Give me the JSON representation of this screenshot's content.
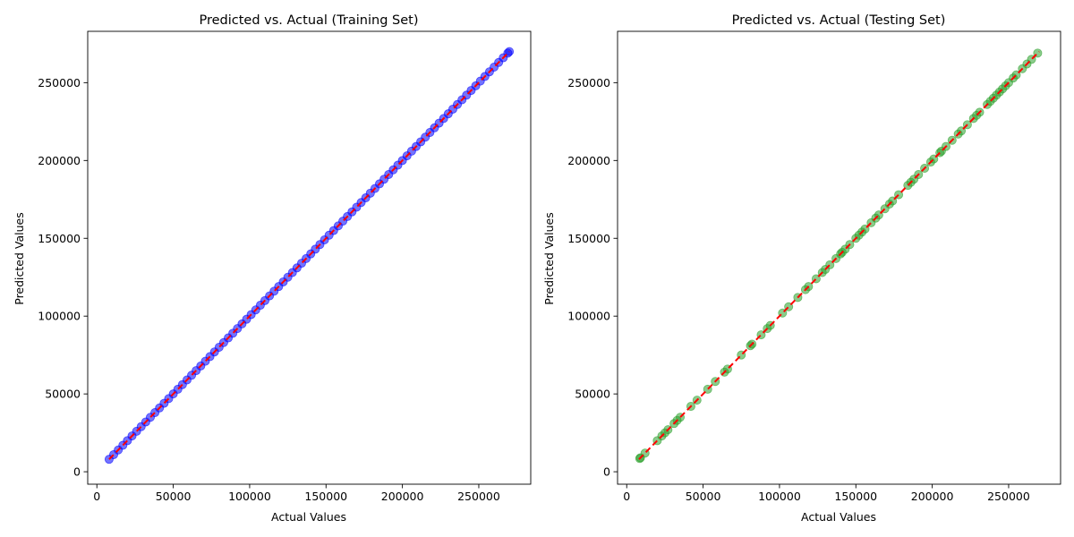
{
  "chart_data": [
    {
      "type": "scatter",
      "title": "Predicted vs. Actual (Training Set)",
      "xlabel": "Actual Values",
      "ylabel": "Predicted Values",
      "xlim": [
        -6000,
        284000
      ],
      "ylim": [
        -8000,
        283000
      ],
      "xticks": [
        0,
        50000,
        100000,
        150000,
        200000,
        250000
      ],
      "yticks": [
        0,
        50000,
        100000,
        150000,
        200000,
        250000
      ],
      "grid": false,
      "point_color": "#0000ff",
      "reference_line": {
        "style": "dashed",
        "color": "#ff0000",
        "from": [
          8000,
          8000
        ],
        "to": [
          270000,
          270000
        ]
      },
      "x": [
        8000,
        11000,
        14000,
        17000,
        20000,
        23000,
        26000,
        29000,
        32000,
        35000,
        38000,
        41000,
        44000,
        47000,
        50000,
        53000,
        56000,
        59000,
        62000,
        65000,
        68000,
        71000,
        74000,
        77000,
        80000,
        83000,
        86000,
        89000,
        92000,
        95000,
        98000,
        101000,
        104000,
        107000,
        110000,
        113000,
        116000,
        119000,
        122000,
        125000,
        128000,
        131000,
        134000,
        137000,
        140000,
        143000,
        146000,
        149000,
        152000,
        155000,
        158000,
        161000,
        164000,
        167000,
        170000,
        173000,
        176000,
        179000,
        182000,
        185000,
        188000,
        191000,
        194000,
        197000,
        200000,
        203000,
        206000,
        209000,
        212000,
        215000,
        218000,
        221000,
        224000,
        227000,
        230000,
        233000,
        236000,
        239000,
        242000,
        245000,
        248000,
        251000,
        254000,
        257000,
        260000,
        263000,
        266000,
        269000,
        270000
      ],
      "y": [
        8000,
        11000,
        14000,
        17000,
        20000,
        23000,
        26000,
        29000,
        32000,
        35000,
        38000,
        41000,
        44000,
        47000,
        50000,
        53000,
        56000,
        59000,
        62000,
        65000,
        68000,
        71000,
        74000,
        77000,
        80000,
        83000,
        86000,
        89000,
        92000,
        95000,
        98000,
        101000,
        104000,
        107000,
        110000,
        113000,
        116000,
        119000,
        122000,
        125000,
        128000,
        131000,
        134000,
        137000,
        140000,
        143000,
        146000,
        149000,
        152000,
        155000,
        158000,
        161000,
        164000,
        167000,
        170000,
        173000,
        176000,
        179000,
        182000,
        185000,
        188000,
        191000,
        194000,
        197000,
        200000,
        203000,
        206000,
        209000,
        212000,
        215000,
        218000,
        221000,
        224000,
        227000,
        230000,
        233000,
        236000,
        239000,
        242000,
        245000,
        248000,
        251000,
        254000,
        257000,
        260000,
        263000,
        266000,
        269000,
        270000
      ]
    },
    {
      "type": "scatter",
      "title": "Predicted vs. Actual (Testing Set)",
      "xlabel": "Actual Values",
      "ylabel": "Predicted Values",
      "xlim": [
        -6000,
        284000
      ],
      "ylim": [
        -8000,
        283000
      ],
      "xticks": [
        0,
        50000,
        100000,
        150000,
        200000,
        250000
      ],
      "yticks": [
        0,
        50000,
        100000,
        150000,
        200000,
        250000
      ],
      "grid": false,
      "point_color": "#2ca02c",
      "reference_line": {
        "style": "dashed",
        "color": "#ff0000",
        "from": [
          8000,
          8000
        ],
        "to": [
          270000,
          270000
        ]
      },
      "x": [
        8500,
        9000,
        12000,
        20000,
        23000,
        25000,
        27000,
        31000,
        33000,
        35000,
        42000,
        46000,
        53000,
        58000,
        64000,
        66000,
        75000,
        81000,
        82000,
        88000,
        92000,
        94000,
        102000,
        106000,
        112000,
        117000,
        119000,
        124000,
        128000,
        130000,
        133000,
        137000,
        140000,
        141000,
        143000,
        146000,
        150000,
        152000,
        154000,
        156000,
        160000,
        163000,
        165000,
        169000,
        172000,
        174000,
        178000,
        184000,
        186000,
        188000,
        191000,
        195000,
        199000,
        201000,
        205000,
        206000,
        209000,
        213000,
        217000,
        219000,
        223000,
        227000,
        229000,
        231000,
        236000,
        238000,
        240000,
        242000,
        244000,
        246000,
        248000,
        250000,
        253000,
        255000,
        259000,
        262000,
        265000,
        269000
      ],
      "y": [
        8500,
        9000,
        12000,
        20000,
        23000,
        25000,
        27000,
        31000,
        33000,
        35000,
        42000,
        46000,
        53000,
        58000,
        64000,
        66000,
        75000,
        81000,
        82000,
        88000,
        92000,
        94000,
        102000,
        106000,
        112000,
        117000,
        119000,
        124000,
        128000,
        130000,
        133000,
        137000,
        140000,
        141000,
        143000,
        146000,
        150000,
        152000,
        154000,
        156000,
        160000,
        163000,
        165000,
        169000,
        172000,
        174000,
        178000,
        184000,
        186000,
        188000,
        191000,
        195000,
        199000,
        201000,
        205000,
        206000,
        209000,
        213000,
        217000,
        219000,
        223000,
        227000,
        229000,
        231000,
        236000,
        238000,
        240000,
        242000,
        244000,
        246000,
        248000,
        250000,
        253000,
        255000,
        259000,
        262000,
        265000,
        269000
      ]
    }
  ]
}
